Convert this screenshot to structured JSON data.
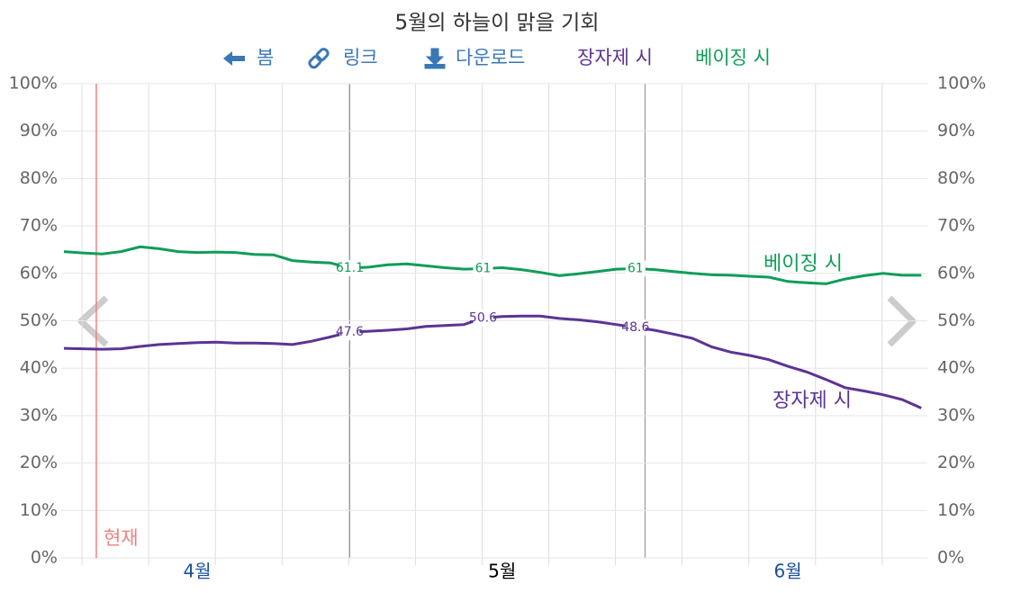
{
  "chart_data": {
    "type": "line",
    "title": "5월의 하늘이 맑을 기회",
    "nav": [
      "봄",
      "링크",
      "다운로드"
    ],
    "now_label": "현재",
    "categories": [
      null,
      null,
      null,
      null,
      null,
      null,
      null,
      "4월",
      null,
      null,
      null,
      null,
      null,
      null,
      null,
      null,
      null,
      null,
      null,
      null,
      null,
      null,
      null,
      "5월",
      null,
      null,
      null,
      null,
      null,
      null,
      null,
      null,
      null,
      null,
      null,
      null,
      null,
      null,
      "6월",
      null,
      null,
      null,
      null,
      null,
      null,
      null
    ],
    "series": [
      {
        "name": "장자제 시",
        "color": "#5b3494",
        "values": [
          44.2,
          44.1,
          44.0,
          44.1,
          44.6,
          45.0,
          45.2,
          45.4,
          45.5,
          45.3,
          45.3,
          45.2,
          45.0,
          45.7,
          46.6,
          47.6,
          47.8,
          48.0,
          48.3,
          48.8,
          49.0,
          49.2,
          50.6,
          50.9,
          51.0,
          51.0,
          50.5,
          50.2,
          49.8,
          49.2,
          48.6,
          48.0,
          47.2,
          46.3,
          44.5,
          43.4,
          42.7,
          41.8,
          40.4,
          39.2,
          37.6,
          35.9,
          35.2,
          34.4,
          33.4,
          31.6
        ]
      },
      {
        "name": "베이징 시",
        "color": "#0f9d58",
        "values": [
          64.6,
          64.3,
          64.1,
          64.6,
          65.6,
          65.2,
          64.6,
          64.4,
          64.5,
          64.4,
          64.0,
          63.9,
          62.7,
          62.4,
          62.2,
          61.1,
          61.3,
          61.8,
          62.0,
          61.6,
          61.2,
          60.9,
          61.0,
          61.2,
          60.8,
          60.2,
          59.5,
          59.9,
          60.4,
          60.9,
          61.0,
          60.8,
          60.4,
          60.0,
          59.7,
          59.6,
          59.4,
          59.2,
          58.3,
          58.0,
          57.8,
          58.8,
          59.5,
          60.0,
          59.6,
          59.6
        ]
      }
    ],
    "labeled_points": [
      15,
      22,
      30
    ],
    "ylim": [
      0,
      100
    ],
    "yticks": [
      {
        "value": 0,
        "label": "0%"
      },
      {
        "value": 10,
        "label": "10%"
      },
      {
        "value": 20,
        "label": "20%"
      },
      {
        "value": 30,
        "label": "30%"
      },
      {
        "value": 40,
        "label": "40%"
      },
      {
        "value": 50,
        "label": "50%"
      },
      {
        "value": 60,
        "label": "60%"
      },
      {
        "value": 70,
        "label": "70%"
      },
      {
        "value": 80,
        "label": "80%"
      },
      {
        "value": 90,
        "label": "90%"
      },
      {
        "value": 100,
        "label": "100%"
      }
    ],
    "y2lim": [
      0,
      100
    ],
    "y2ticks": [
      {
        "value": 0,
        "label": "0%"
      },
      {
        "value": 10,
        "label": "10%"
      },
      {
        "value": 20,
        "label": "20%"
      },
      {
        "value": 30,
        "label": "30%"
      },
      {
        "value": 40,
        "label": "40%"
      },
      {
        "value": 50,
        "label": "50%"
      },
      {
        "value": 60,
        "label": "60%"
      },
      {
        "value": 70,
        "label": "70%"
      },
      {
        "value": 80,
        "label": "80%"
      },
      {
        "value": 90,
        "label": "90%"
      },
      {
        "value": 100,
        "label": "100%"
      }
    ],
    "grid": true
  }
}
